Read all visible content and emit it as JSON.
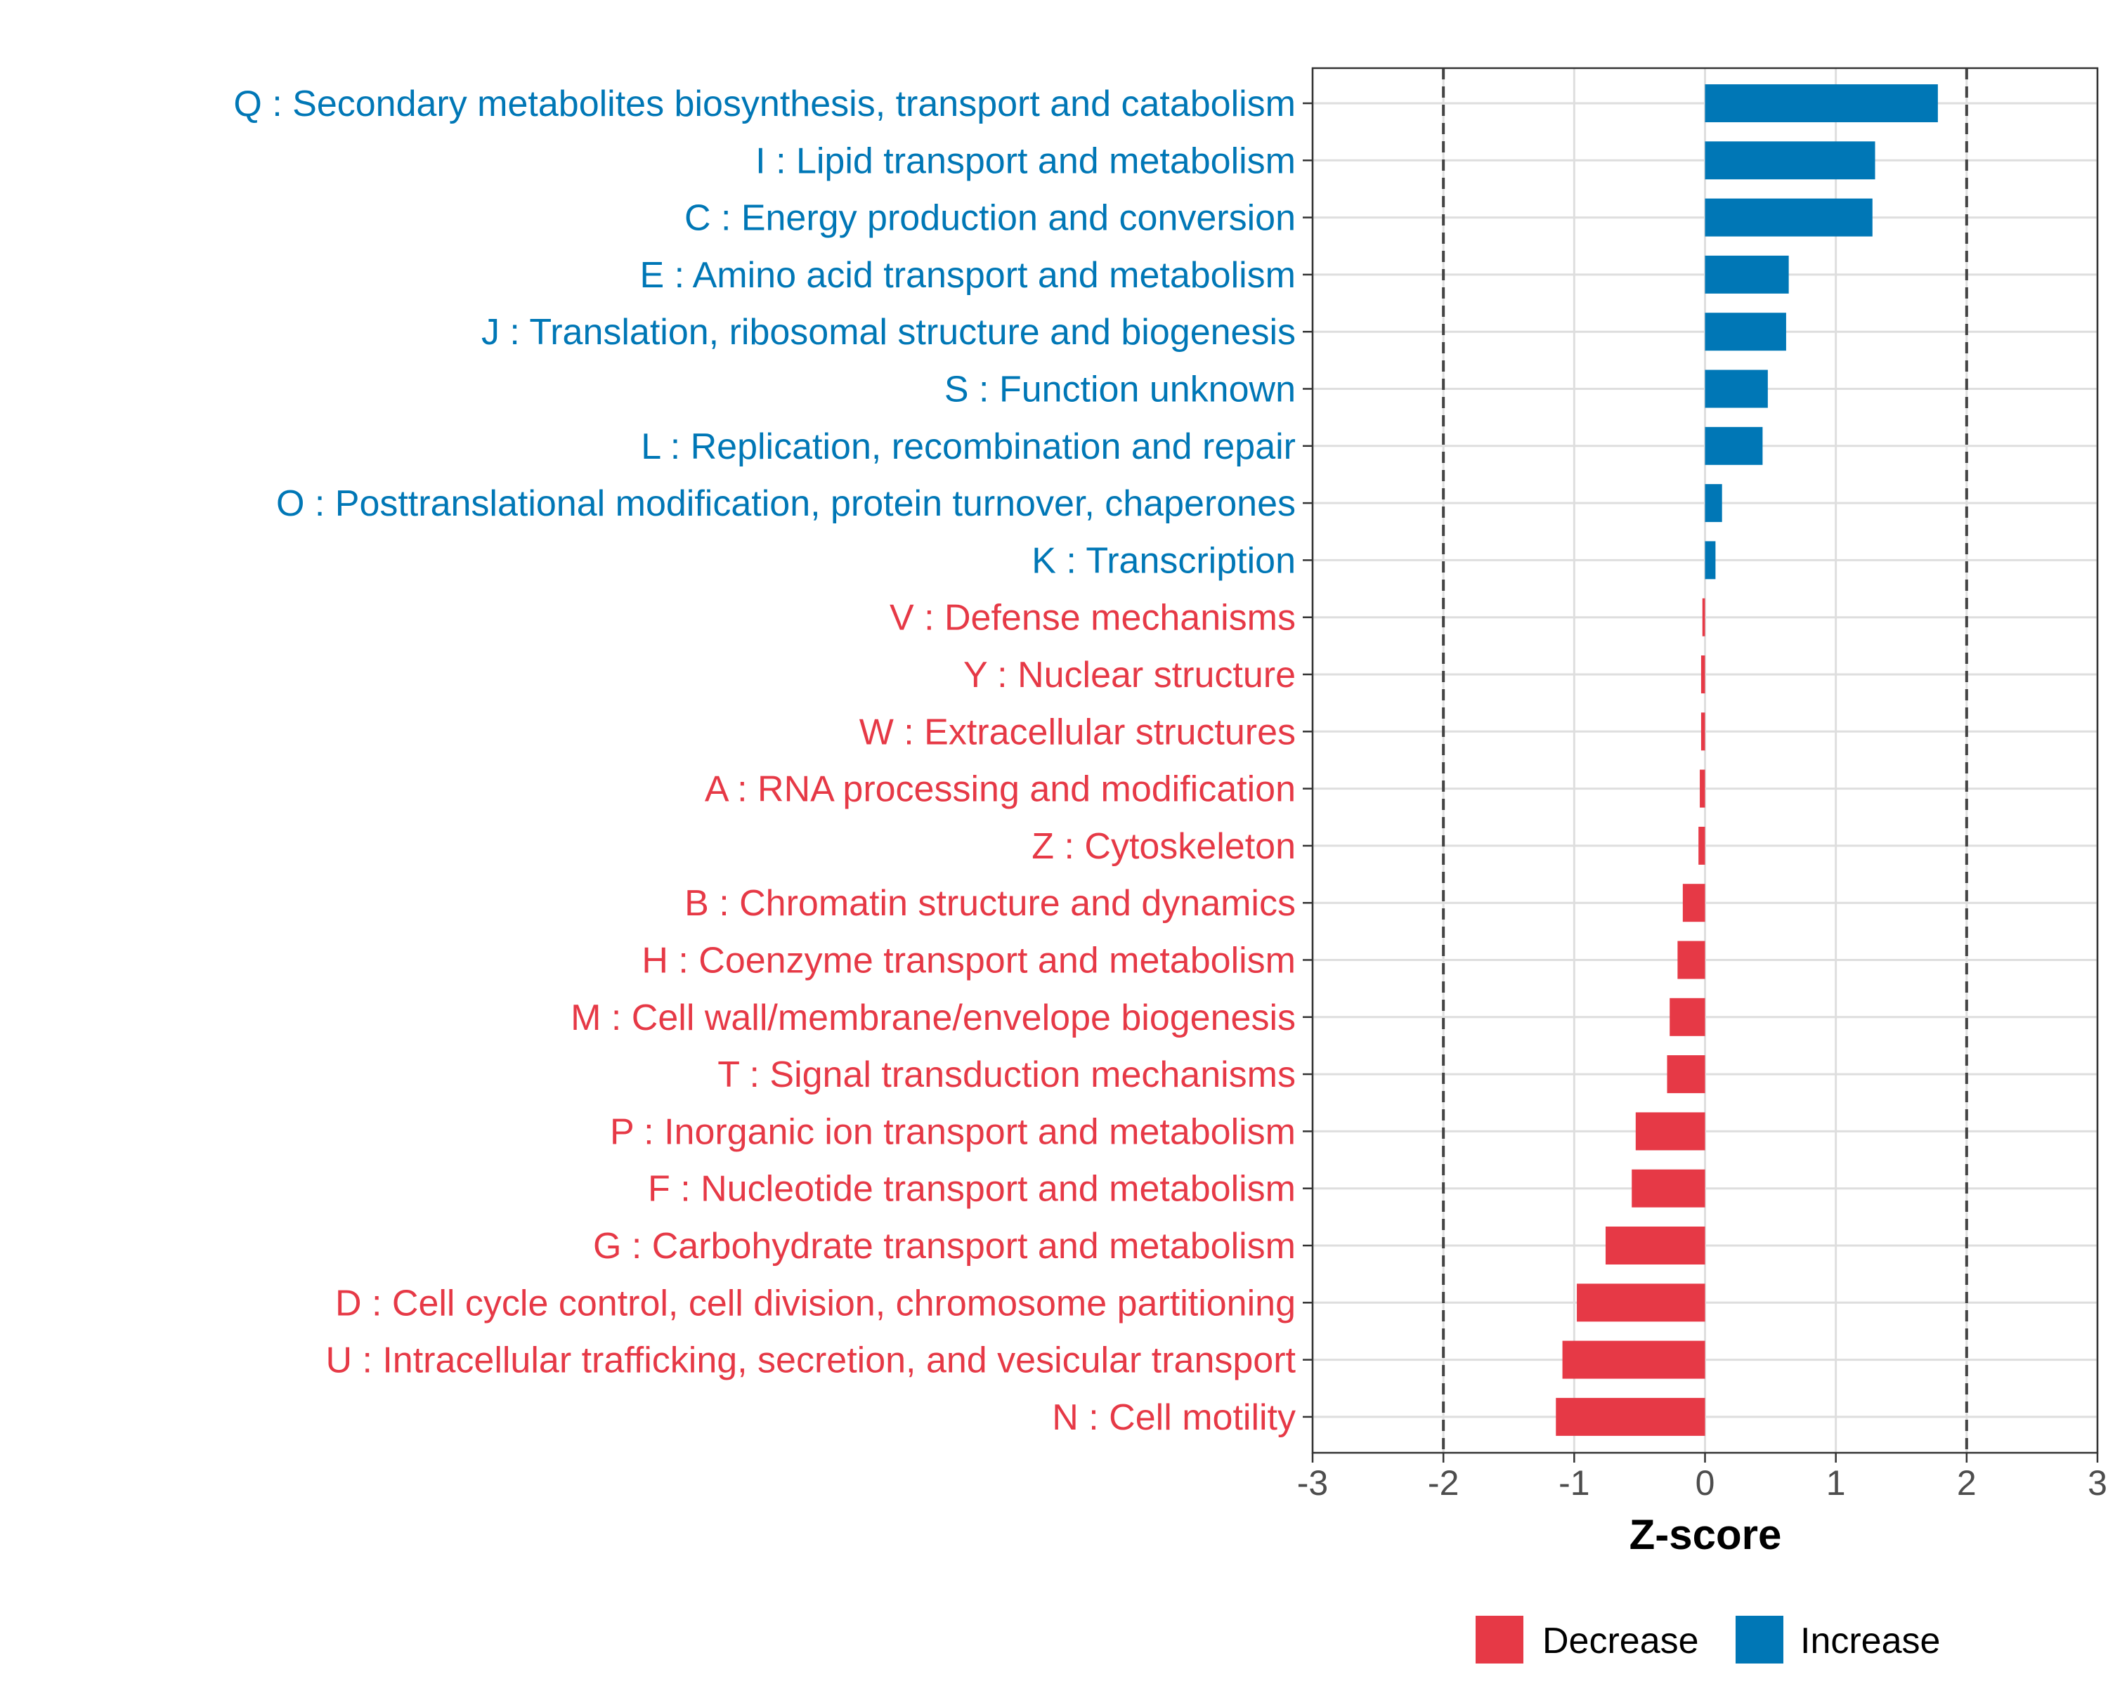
{
  "chart_data": {
    "type": "bar",
    "orientation": "horizontal",
    "xlabel": "Z-score",
    "ylabel": "",
    "xlim": [
      -3,
      3
    ],
    "xticks": [
      -3,
      -2,
      -1,
      0,
      1,
      2,
      3
    ],
    "xtick_labels": [
      "-3",
      "-2",
      "-1",
      "0",
      "1",
      "2",
      "3"
    ],
    "reference_lines": [
      -2,
      2
    ],
    "grid": true,
    "legend": {
      "position": "bottom",
      "entries": [
        {
          "label": "Decrease",
          "color": "#E63946"
        },
        {
          "label": "Increase",
          "color": "#0077B6"
        }
      ]
    },
    "categories": [
      {
        "label": "Q : Secondary metabolites biosynthesis, transport and catabolism",
        "value": 1.78,
        "direction": "Increase"
      },
      {
        "label": "I : Lipid transport and metabolism",
        "value": 1.3,
        "direction": "Increase"
      },
      {
        "label": "C : Energy production and conversion",
        "value": 1.28,
        "direction": "Increase"
      },
      {
        "label": "E : Amino acid transport and metabolism",
        "value": 0.64,
        "direction": "Increase"
      },
      {
        "label": "J : Translation, ribosomal structure and biogenesis",
        "value": 0.62,
        "direction": "Increase"
      },
      {
        "label": "S : Function unknown",
        "value": 0.48,
        "direction": "Increase"
      },
      {
        "label": "L : Replication, recombination and repair",
        "value": 0.44,
        "direction": "Increase"
      },
      {
        "label": "O : Posttranslational modification, protein turnover, chaperones",
        "value": 0.13,
        "direction": "Increase"
      },
      {
        "label": "K : Transcription",
        "value": 0.08,
        "direction": "Increase"
      },
      {
        "label": "V : Defense mechanisms",
        "value": -0.02,
        "direction": "Decrease"
      },
      {
        "label": "Y : Nuclear structure",
        "value": -0.03,
        "direction": "Decrease"
      },
      {
        "label": "W : Extracellular structures",
        "value": -0.03,
        "direction": "Decrease"
      },
      {
        "label": "A : RNA processing and modification",
        "value": -0.04,
        "direction": "Decrease"
      },
      {
        "label": "Z : Cytoskeleton",
        "value": -0.05,
        "direction": "Decrease"
      },
      {
        "label": "B : Chromatin structure and dynamics",
        "value": -0.17,
        "direction": "Decrease"
      },
      {
        "label": "H : Coenzyme transport and metabolism",
        "value": -0.21,
        "direction": "Decrease"
      },
      {
        "label": "M : Cell wall/membrane/envelope biogenesis",
        "value": -0.27,
        "direction": "Decrease"
      },
      {
        "label": "T : Signal transduction mechanisms",
        "value": -0.29,
        "direction": "Decrease"
      },
      {
        "label": "P : Inorganic ion transport and metabolism",
        "value": -0.53,
        "direction": "Decrease"
      },
      {
        "label": "F : Nucleotide transport and metabolism",
        "value": -0.56,
        "direction": "Decrease"
      },
      {
        "label": "G : Carbohydrate transport and metabolism",
        "value": -0.76,
        "direction": "Decrease"
      },
      {
        "label": "D : Cell cycle control, cell division, chromosome partitioning",
        "value": -0.98,
        "direction": "Decrease"
      },
      {
        "label": "U : Intracellular trafficking, secretion, and vesicular transport",
        "value": -1.09,
        "direction": "Decrease"
      },
      {
        "label": "N : Cell motility",
        "value": -1.14,
        "direction": "Decrease"
      }
    ]
  }
}
